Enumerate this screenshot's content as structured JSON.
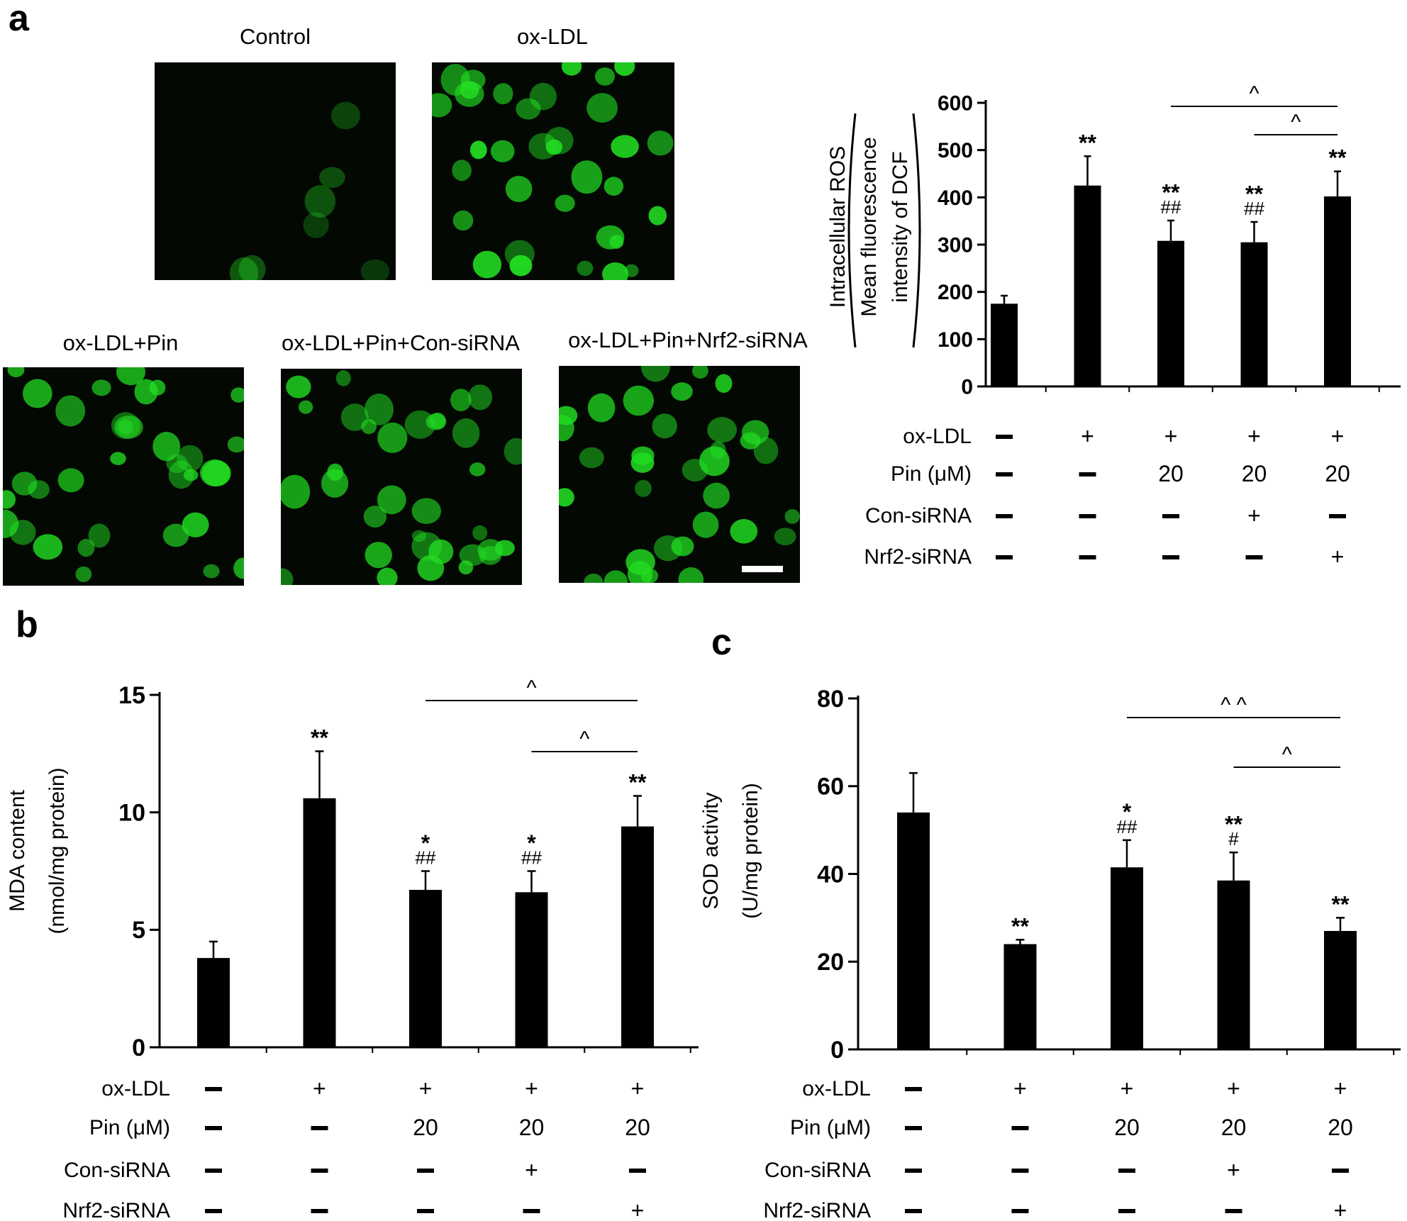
{
  "panels": {
    "a": "a",
    "b": "b",
    "c": "c"
  },
  "images": [
    {
      "title": "Control",
      "intensity": 0.15
    },
    {
      "title": "ox-LDL",
      "intensity": 0.95
    },
    {
      "title": "ox-LDL+Pin",
      "intensity": 0.7
    },
    {
      "title": "ox-LDL+Pin+Con-siRNA",
      "intensity": 0.7
    },
    {
      "title": "ox-LDL+Pin+Nrf2-siRNA",
      "intensity": 0.9
    }
  ],
  "colors": {
    "bar": "#000000",
    "fluorescence": "#22dd22",
    "background": "#030803",
    "scale_bar": "#ffffff"
  },
  "treatment_rows": [
    "ox-LDL",
    "Pin (μM)",
    "Con-siRNA",
    "Nrf2-siRNA"
  ],
  "treatment_symbols": [
    [
      "−",
      "+",
      "+",
      "+",
      "+"
    ],
    [
      "−",
      "−",
      "20",
      "20",
      "20"
    ],
    [
      "−",
      "−",
      "−",
      "+",
      "−"
    ],
    [
      "−",
      "−",
      "−",
      "−",
      "+"
    ]
  ],
  "chart_data": [
    {
      "id": "a",
      "type": "bar",
      "ylabel_lines": [
        "Intracellular ROS",
        "Mean fluorescence",
        "intensity of DCF"
      ],
      "ylim": [
        0,
        600
      ],
      "yticks": [
        0,
        100,
        200,
        300,
        400,
        500,
        600
      ],
      "values": [
        175,
        425,
        308,
        305,
        402
      ],
      "errors": [
        17,
        62,
        43,
        43,
        53
      ],
      "marks_star": [
        "",
        "**",
        "**",
        "**",
        "**"
      ],
      "marks_hash": [
        "",
        "",
        "##",
        "##",
        ""
      ],
      "brackets": [
        {
          "from": 2,
          "to": 4,
          "label": "^"
        },
        {
          "from": 3,
          "to": 4,
          "label": "^"
        }
      ]
    },
    {
      "id": "b",
      "type": "bar",
      "ylabel_lines": [
        "MDA content",
        "(nmol/mg protein)"
      ],
      "ylim": [
        0,
        15
      ],
      "yticks": [
        0,
        5,
        10,
        15
      ],
      "values": [
        3.8,
        10.6,
        6.7,
        6.6,
        9.4
      ],
      "errors": [
        0.7,
        2.0,
        0.8,
        0.9,
        1.3
      ],
      "marks_star": [
        "",
        "**",
        "*",
        "*",
        "**"
      ],
      "marks_hash": [
        "",
        "",
        "##",
        "##",
        ""
      ],
      "brackets": [
        {
          "from": 2,
          "to": 4,
          "label": "^"
        },
        {
          "from": 3,
          "to": 4,
          "label": "^"
        }
      ]
    },
    {
      "id": "c",
      "type": "bar",
      "ylabel_lines": [
        "SOD activity",
        "(U/mg protein)"
      ],
      "ylim": [
        0,
        80
      ],
      "yticks": [
        0,
        20,
        40,
        60,
        80
      ],
      "values": [
        54,
        24,
        41.5,
        38.5,
        27
      ],
      "errors": [
        9,
        1,
        6.2,
        6.4,
        3
      ],
      "marks_star": [
        "",
        "**",
        "*",
        "**",
        "**"
      ],
      "marks_hash": [
        "",
        "",
        "##",
        "#",
        ""
      ],
      "brackets": [
        {
          "from": 2,
          "to": 4,
          "label": "^ ^"
        },
        {
          "from": 3,
          "to": 4,
          "label": "^"
        }
      ]
    }
  ]
}
